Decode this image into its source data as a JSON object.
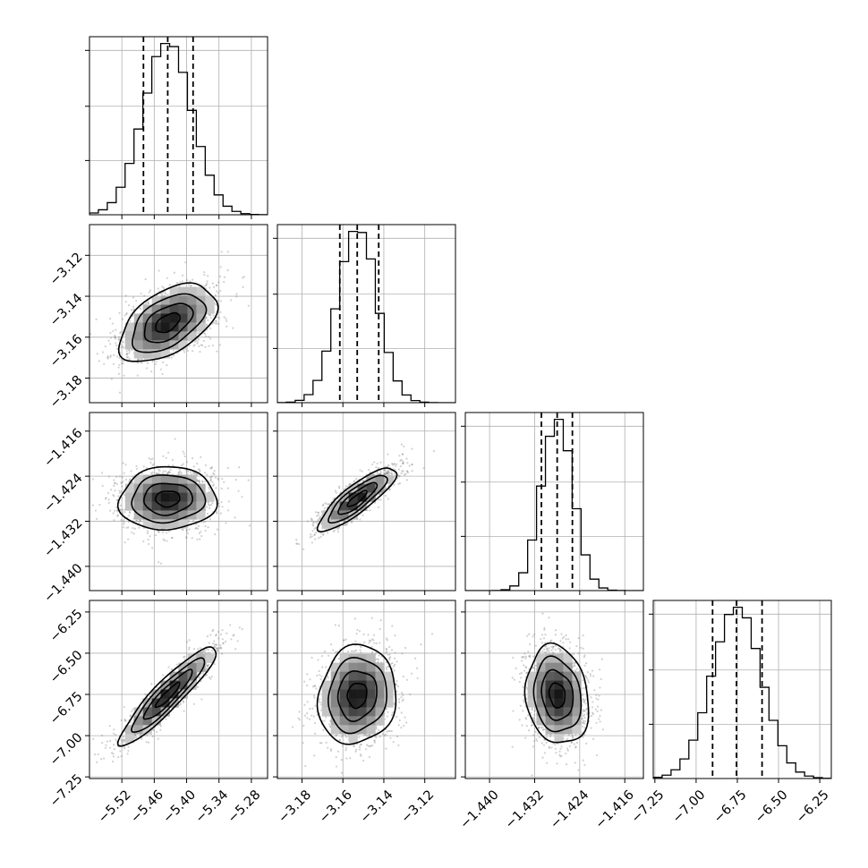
{
  "chart_data": {
    "type": "corner",
    "grid": true,
    "params": [
      {
        "ticks": [
          -5.52,
          -5.46,
          -5.4,
          -5.34,
          -5.28
        ],
        "tick_labels": [
          "−5.52",
          "−5.46",
          "−5.40",
          "−5.34",
          "−5.28"
        ],
        "range": [
          -5.58,
          -5.25
        ],
        "quantiles": [
          -5.48,
          -5.435,
          -5.388
        ],
        "median": -5.435,
        "sigma": 0.045
      },
      {
        "ticks": [
          -3.18,
          -3.16,
          -3.14,
          -3.12
        ],
        "tick_labels": [
          "−3.18",
          "−3.16",
          "−3.14",
          "−3.12"
        ],
        "range": [
          -3.192,
          -3.105
        ],
        "quantiles": [
          -3.1615,
          -3.153,
          -3.1425
        ],
        "median": -3.153,
        "sigma": 0.0095
      },
      {
        "ticks": [
          -1.44,
          -1.432,
          -1.424,
          -1.416
        ],
        "tick_labels": [
          "−1.440",
          "−1.432",
          "−1.424",
          "−1.416"
        ],
        "range": [
          -1.4443,
          -1.4127
        ],
        "quantiles": [
          -1.4308,
          -1.428,
          -1.4253
        ],
        "median": -1.428,
        "sigma": 0.0028
      },
      {
        "ticks": [
          -7.25,
          -7.0,
          -6.75,
          -6.5,
          -6.25
        ],
        "tick_labels": [
          "−7.25",
          "−7.00",
          "−6.75",
          "−6.50",
          "−6.25"
        ],
        "range": [
          -7.26,
          -6.18
        ],
        "quantiles": [
          -6.9,
          -6.755,
          -6.6
        ],
        "median": -6.755,
        "sigma": 0.15
      }
    ],
    "correlations": {
      "1-0": 0.5,
      "2-0": 0.05,
      "2-1": 0.85,
      "3-0": 0.92,
      "3-1": 0.1,
      "3-2": -0.15
    },
    "histogram_bins": 20,
    "contour_levels": [
      "0.5-sigma",
      "1-sigma",
      "1.5-sigma",
      "2-sigma"
    ],
    "colors": {
      "line": "#000000",
      "grid": "#b0b0b0",
      "points": "#7a7a7a"
    }
  }
}
